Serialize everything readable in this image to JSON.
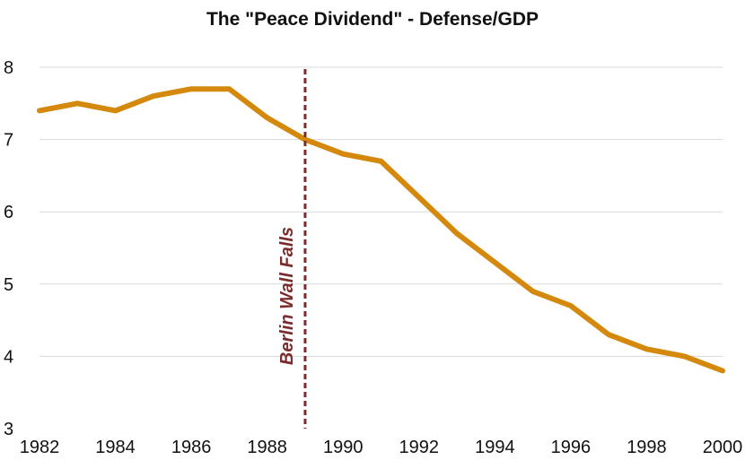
{
  "chart_data": {
    "type": "line",
    "title": "The \"Peace Dividend\" - Defense/GDP",
    "xlabel": "",
    "ylabel": "",
    "xlim": [
      1982,
      2000
    ],
    "ylim": [
      3,
      8
    ],
    "x_ticks": [
      "1982",
      "1984",
      "1986",
      "1988",
      "1990",
      "1992",
      "1994",
      "1996",
      "1998",
      "2000"
    ],
    "y_ticks": [
      "3",
      "4",
      "5",
      "6",
      "7",
      "8"
    ],
    "grid": true,
    "series": [
      {
        "name": "Defense/GDP",
        "color": "#D4890C",
        "x": [
          1982,
          1983,
          1984,
          1985,
          1986,
          1987,
          1988,
          1989,
          1990,
          1991,
          1992,
          1993,
          1994,
          1995,
          1996,
          1997,
          1998,
          1999,
          2000
        ],
        "values": [
          7.4,
          7.5,
          7.4,
          7.6,
          7.7,
          7.7,
          7.3,
          7.0,
          6.8,
          6.7,
          6.2,
          5.7,
          5.3,
          4.9,
          4.7,
          4.3,
          4.1,
          4.0,
          3.8
        ]
      }
    ],
    "annotations": [
      {
        "type": "vline",
        "x": 1989,
        "text": "Berlin Wall Falls",
        "color": "#7B2C2C"
      }
    ]
  }
}
